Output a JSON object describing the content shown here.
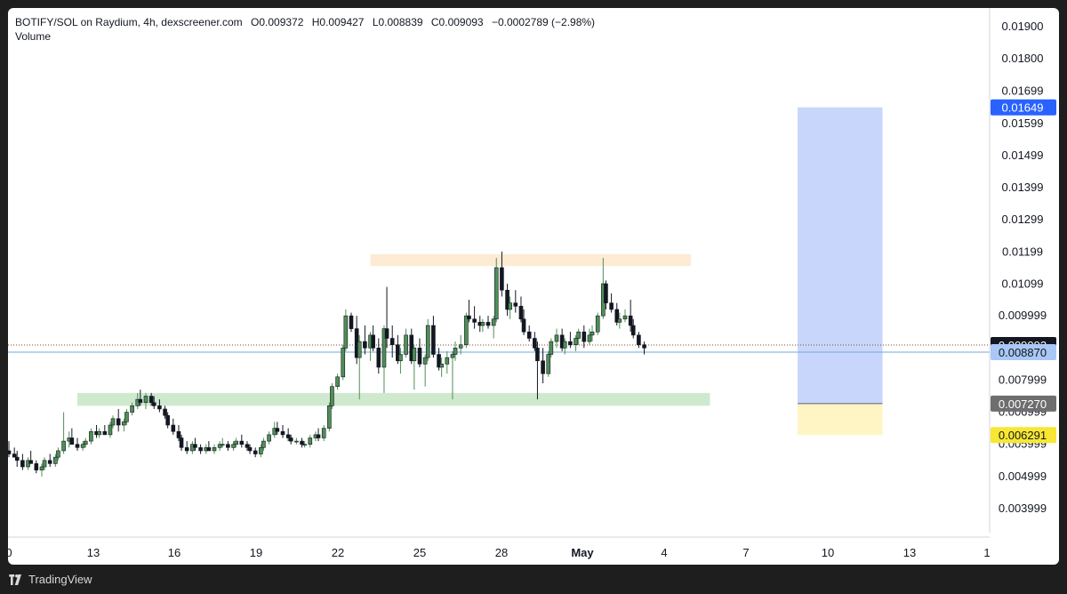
{
  "legend": {
    "symbol": "BOTIFY/SOL on Raydium, 4h, dexscreener.com",
    "open": "O0.009372",
    "high": "H0.009427",
    "low": "L0.008839",
    "close": "C0.009093",
    "change": "−0.0002789 (−2.98%)",
    "volume_label": "Volume"
  },
  "brand": "TradingView",
  "colors": {
    "up": "#26a69a",
    "up_fill": "#4f8f55",
    "down": "#131722",
    "resistance_zone": "#fdebd3",
    "support_zone": "#cfe9cf",
    "target_zone": "#c9d6fb",
    "stop_zone": "#fff5c4",
    "current_price_line": "#7a4a2a",
    "reference_line": "#6fa8dc"
  },
  "chart_data": {
    "type": "candlestick",
    "x_ticks": [
      "0",
      "13",
      "16",
      "19",
      "22",
      "25",
      "28",
      "May",
      "4",
      "7",
      "10",
      "13",
      "1"
    ],
    "y_ticks": [
      "0.01900",
      "0.01800",
      "0.01699",
      "0.01599",
      "0.01499",
      "0.01399",
      "0.01299",
      "0.01199",
      "0.01099",
      "0.009999",
      "0.007999",
      "0.006999",
      "0.005999",
      "0.004999",
      "0.003999"
    ],
    "y_tick_values": [
      0.019,
      0.018,
      0.01699,
      0.01599,
      0.01499,
      0.01399,
      0.01299,
      0.01199,
      0.01099,
      0.009999,
      0.007999,
      0.006999,
      0.005999,
      0.004999,
      0.003999
    ],
    "price_labels": [
      {
        "text": "0.01649",
        "value": 0.01649,
        "bg": "#2962ff",
        "fg": "#ffffff"
      },
      {
        "text": "0.009093",
        "value": 0.009093,
        "bg": "#131722",
        "fg": "#ffffff"
      },
      {
        "text": "0.008870",
        "value": 0.00887,
        "bg": "#a9c8f5",
        "fg": "#131722"
      },
      {
        "text": "0.007270",
        "value": 0.00727,
        "bg": "#6e6e6e",
        "fg": "#ffffff"
      },
      {
        "text": "0.006291",
        "value": 0.006291,
        "bg": "#f7e733",
        "fg": "#131722"
      }
    ],
    "zones": [
      {
        "name": "resistance",
        "from_x": 23.2,
        "to_x": 34.9,
        "low": 0.01155,
        "high": 0.01192
      },
      {
        "name": "support",
        "from_x": 12.5,
        "to_x": 35.6,
        "low": 0.0072,
        "high": 0.0076
      },
      {
        "name": "target",
        "from_x": 38.8,
        "to_x": 41.9,
        "low": 0.00727,
        "high": 0.01649
      },
      {
        "name": "stop",
        "from_x": 38.8,
        "to_x": 41.9,
        "low": 0.006291,
        "high": 0.00727
      }
    ],
    "current_price": 0.009093,
    "reference_price": 0.00887,
    "x_range": [
      10,
      46
    ],
    "candles": [
      [
        10.0,
        0.0058,
        0.0061,
        0.0056,
        0.0057
      ],
      [
        10.2,
        0.0057,
        0.0059,
        0.0056,
        0.0056
      ],
      [
        10.3,
        0.0056,
        0.0058,
        0.0053,
        0.0055
      ],
      [
        10.5,
        0.0055,
        0.0057,
        0.0052,
        0.0053
      ],
      [
        10.7,
        0.0053,
        0.0056,
        0.0052,
        0.0055
      ],
      [
        10.8,
        0.0055,
        0.0058,
        0.0054,
        0.0054
      ],
      [
        11.0,
        0.0054,
        0.0055,
        0.0051,
        0.0052
      ],
      [
        11.2,
        0.0052,
        0.0054,
        0.005,
        0.0053
      ],
      [
        11.3,
        0.0053,
        0.0056,
        0.0052,
        0.0055
      ],
      [
        11.5,
        0.0055,
        0.0057,
        0.0053,
        0.0054
      ],
      [
        11.7,
        0.0054,
        0.0057,
        0.0053,
        0.0056
      ],
      [
        11.8,
        0.0056,
        0.0059,
        0.0055,
        0.0058
      ],
      [
        12.0,
        0.0058,
        0.007,
        0.0057,
        0.0061
      ],
      [
        12.2,
        0.0061,
        0.0064,
        0.0059,
        0.0062
      ],
      [
        12.3,
        0.0062,
        0.0065,
        0.006,
        0.006
      ],
      [
        12.5,
        0.006,
        0.0062,
        0.0058,
        0.0059
      ],
      [
        12.7,
        0.0059,
        0.0061,
        0.0058,
        0.006
      ],
      [
        12.8,
        0.006,
        0.0062,
        0.0059,
        0.0061
      ],
      [
        13.0,
        0.0061,
        0.0065,
        0.006,
        0.0064
      ],
      [
        13.2,
        0.0064,
        0.0066,
        0.0062,
        0.0063
      ],
      [
        13.3,
        0.0063,
        0.0065,
        0.0062,
        0.0064
      ],
      [
        13.5,
        0.0064,
        0.0066,
        0.0063,
        0.0063
      ],
      [
        13.7,
        0.0063,
        0.0067,
        0.0062,
        0.0066
      ],
      [
        13.8,
        0.0066,
        0.0069,
        0.0065,
        0.0068
      ],
      [
        14.0,
        0.0068,
        0.0071,
        0.0064,
        0.0066
      ],
      [
        14.2,
        0.0066,
        0.0068,
        0.0064,
        0.0067
      ],
      [
        14.3,
        0.0067,
        0.0071,
        0.0066,
        0.007
      ],
      [
        14.5,
        0.007,
        0.0073,
        0.0069,
        0.0072
      ],
      [
        14.7,
        0.0072,
        0.0076,
        0.0071,
        0.0074
      ],
      [
        14.8,
        0.0074,
        0.0077,
        0.0072,
        0.0073
      ],
      [
        15.0,
        0.0073,
        0.0076,
        0.0071,
        0.0075
      ],
      [
        15.2,
        0.0075,
        0.0076,
        0.0072,
        0.0073
      ],
      [
        15.3,
        0.0073,
        0.0075,
        0.0071,
        0.0072
      ],
      [
        15.5,
        0.0072,
        0.0074,
        0.007,
        0.0071
      ],
      [
        15.7,
        0.0071,
        0.0072,
        0.0068,
        0.0069
      ],
      [
        15.8,
        0.0069,
        0.007,
        0.0065,
        0.0066
      ],
      [
        16.0,
        0.0066,
        0.0068,
        0.0063,
        0.0064
      ],
      [
        16.2,
        0.0064,
        0.0066,
        0.0061,
        0.0062
      ],
      [
        16.3,
        0.0062,
        0.0063,
        0.0058,
        0.0059
      ],
      [
        16.5,
        0.0059,
        0.0061,
        0.0057,
        0.0058
      ],
      [
        16.7,
        0.0058,
        0.0061,
        0.0057,
        0.006
      ],
      [
        16.8,
        0.006,
        0.0062,
        0.0058,
        0.0059
      ],
      [
        17.0,
        0.0059,
        0.006,
        0.0057,
        0.0058
      ],
      [
        17.2,
        0.0058,
        0.006,
        0.0057,
        0.0059
      ],
      [
        17.3,
        0.0059,
        0.0061,
        0.0058,
        0.0058
      ],
      [
        17.5,
        0.0058,
        0.006,
        0.0057,
        0.0059
      ],
      [
        17.7,
        0.0059,
        0.0061,
        0.0058,
        0.006
      ],
      [
        17.8,
        0.006,
        0.0062,
        0.0059,
        0.006
      ],
      [
        18.0,
        0.006,
        0.0061,
        0.0058,
        0.0059
      ],
      [
        18.2,
        0.0059,
        0.0061,
        0.0058,
        0.006
      ],
      [
        18.3,
        0.006,
        0.0062,
        0.0059,
        0.0061
      ],
      [
        18.5,
        0.0061,
        0.0063,
        0.0059,
        0.006
      ],
      [
        18.7,
        0.006,
        0.0061,
        0.0058,
        0.0059
      ],
      [
        18.8,
        0.0059,
        0.006,
        0.0057,
        0.0058
      ],
      [
        19.0,
        0.0058,
        0.0059,
        0.0056,
        0.0057
      ],
      [
        19.2,
        0.0057,
        0.006,
        0.0056,
        0.0059
      ],
      [
        19.3,
        0.0059,
        0.0062,
        0.0058,
        0.0061
      ],
      [
        19.5,
        0.0061,
        0.0064,
        0.006,
        0.0063
      ],
      [
        19.7,
        0.0063,
        0.0067,
        0.0062,
        0.0065
      ],
      [
        19.8,
        0.0065,
        0.0067,
        0.0063,
        0.0064
      ],
      [
        20.0,
        0.0064,
        0.0066,
        0.0062,
        0.0063
      ],
      [
        20.2,
        0.0063,
        0.0065,
        0.0061,
        0.0062
      ],
      [
        20.3,
        0.0062,
        0.0063,
        0.006,
        0.0061
      ],
      [
        20.5,
        0.0061,
        0.0062,
        0.006,
        0.0061
      ],
      [
        20.7,
        0.0061,
        0.0062,
        0.0059,
        0.006
      ],
      [
        20.8,
        0.006,
        0.0061,
        0.0059,
        0.006
      ],
      [
        21.0,
        0.006,
        0.0063,
        0.0059,
        0.0062
      ],
      [
        21.2,
        0.0062,
        0.0064,
        0.0061,
        0.0063
      ],
      [
        21.3,
        0.0063,
        0.0065,
        0.0061,
        0.0062
      ],
      [
        21.5,
        0.0062,
        0.0066,
        0.0061,
        0.0065
      ],
      [
        21.7,
        0.0065,
        0.0073,
        0.0064,
        0.0072
      ],
      [
        21.8,
        0.0072,
        0.0079,
        0.0071,
        0.0078
      ],
      [
        22.0,
        0.0078,
        0.0082,
        0.0077,
        0.0081
      ],
      [
        22.2,
        0.0081,
        0.0091,
        0.008,
        0.009
      ],
      [
        22.3,
        0.009,
        0.0102,
        0.0089,
        0.01
      ],
      [
        22.5,
        0.01,
        0.0101,
        0.0095,
        0.0096
      ],
      [
        22.7,
        0.0096,
        0.01,
        0.0085,
        0.0087
      ],
      [
        22.8,
        0.0087,
        0.0094,
        0.0074,
        0.0092
      ],
      [
        23.0,
        0.0092,
        0.0097,
        0.0088,
        0.009
      ],
      [
        23.2,
        0.009,
        0.0095,
        0.0086,
        0.0094
      ],
      [
        23.3,
        0.0094,
        0.0097,
        0.0089,
        0.009
      ],
      [
        23.5,
        0.009,
        0.0093,
        0.0082,
        0.0084
      ],
      [
        23.7,
        0.0084,
        0.0097,
        0.0076,
        0.0096
      ],
      [
        23.8,
        0.0096,
        0.0109,
        0.009,
        0.0093
      ],
      [
        24.0,
        0.0093,
        0.0097,
        0.0087,
        0.0091
      ],
      [
        24.2,
        0.0091,
        0.0094,
        0.0085,
        0.0086
      ],
      [
        24.3,
        0.0086,
        0.009,
        0.0082,
        0.0088
      ],
      [
        24.5,
        0.0088,
        0.0096,
        0.0087,
        0.0094
      ],
      [
        24.7,
        0.0094,
        0.0096,
        0.0085,
        0.0086
      ],
      [
        24.8,
        0.0086,
        0.0091,
        0.0077,
        0.009
      ],
      [
        25.0,
        0.009,
        0.0093,
        0.0084,
        0.0085
      ],
      [
        25.2,
        0.0085,
        0.0088,
        0.0078,
        0.0087
      ],
      [
        25.3,
        0.0087,
        0.0099,
        0.0086,
        0.0097
      ],
      [
        25.5,
        0.0097,
        0.01,
        0.0087,
        0.0088
      ],
      [
        25.7,
        0.0088,
        0.009,
        0.0083,
        0.0084
      ],
      [
        25.8,
        0.0084,
        0.0087,
        0.0081,
        0.0085
      ],
      [
        26.0,
        0.0085,
        0.0089,
        0.0082,
        0.0087
      ],
      [
        26.2,
        0.0087,
        0.0089,
        0.0074,
        0.0088
      ],
      [
        26.3,
        0.0088,
        0.0092,
        0.0086,
        0.009
      ],
      [
        26.5,
        0.009,
        0.0094,
        0.0088,
        0.0091
      ],
      [
        26.7,
        0.0091,
        0.0101,
        0.009,
        0.01
      ],
      [
        26.8,
        0.01,
        0.0105,
        0.0098,
        0.0099
      ],
      [
        27.0,
        0.0099,
        0.0103,
        0.0096,
        0.0098
      ],
      [
        27.2,
        0.0098,
        0.01,
        0.0095,
        0.0097
      ],
      [
        27.3,
        0.0097,
        0.0099,
        0.0095,
        0.0098
      ],
      [
        27.5,
        0.0098,
        0.01,
        0.0096,
        0.0097
      ],
      [
        27.7,
        0.0097,
        0.01,
        0.0093,
        0.0099
      ],
      [
        27.8,
        0.0099,
        0.0118,
        0.0098,
        0.0115
      ],
      [
        28.0,
        0.0115,
        0.012,
        0.0106,
        0.0108
      ],
      [
        28.2,
        0.0108,
        0.011,
        0.01,
        0.0102
      ],
      [
        28.3,
        0.0102,
        0.0106,
        0.0099,
        0.0104
      ],
      [
        28.5,
        0.0104,
        0.0108,
        0.0101,
        0.0103
      ],
      [
        28.7,
        0.0103,
        0.0106,
        0.0098,
        0.0099
      ],
      [
        28.8,
        0.0099,
        0.0102,
        0.0094,
        0.0095
      ],
      [
        29.0,
        0.0095,
        0.0097,
        0.0092,
        0.0093
      ],
      [
        29.2,
        0.0093,
        0.0095,
        0.0089,
        0.009
      ],
      [
        29.3,
        0.009,
        0.0092,
        0.0074,
        0.0086
      ],
      [
        29.5,
        0.0086,
        0.009,
        0.0079,
        0.0082
      ],
      [
        29.7,
        0.0082,
        0.0089,
        0.0081,
        0.0088
      ],
      [
        29.8,
        0.0088,
        0.0093,
        0.0087,
        0.0092
      ],
      [
        30.0,
        0.0092,
        0.0096,
        0.009,
        0.0094
      ],
      [
        30.2,
        0.0094,
        0.0096,
        0.0089,
        0.009
      ],
      [
        30.3,
        0.009,
        0.0093,
        0.0088,
        0.0092
      ],
      [
        30.5,
        0.0092,
        0.0095,
        0.009,
        0.0091
      ],
      [
        30.7,
        0.0091,
        0.0094,
        0.0089,
        0.0093
      ],
      [
        30.8,
        0.0093,
        0.0096,
        0.0091,
        0.0095
      ],
      [
        31.0,
        0.0095,
        0.0097,
        0.009,
        0.0092
      ],
      [
        31.2,
        0.0092,
        0.0096,
        0.0091,
        0.0094
      ],
      [
        31.3,
        0.0094,
        0.0097,
        0.0092,
        0.0095
      ],
      [
        31.5,
        0.0095,
        0.0101,
        0.0094,
        0.01
      ],
      [
        31.7,
        0.01,
        0.0118,
        0.0099,
        0.011
      ],
      [
        31.8,
        0.011,
        0.0111,
        0.0102,
        0.0104
      ],
      [
        32.0,
        0.0104,
        0.0107,
        0.0101,
        0.0102
      ],
      [
        32.2,
        0.0102,
        0.0104,
        0.0097,
        0.0098
      ],
      [
        32.3,
        0.0098,
        0.0101,
        0.0096,
        0.0099
      ],
      [
        32.5,
        0.0099,
        0.0102,
        0.0098,
        0.01
      ],
      [
        32.7,
        0.01,
        0.0105,
        0.0095,
        0.0097
      ],
      [
        32.8,
        0.0097,
        0.0099,
        0.0093,
        0.0094
      ],
      [
        33.0,
        0.0094,
        0.0095,
        0.009,
        0.0091
      ],
      [
        33.2,
        0.0091,
        0.0092,
        0.0088,
        0.009
      ]
    ]
  }
}
